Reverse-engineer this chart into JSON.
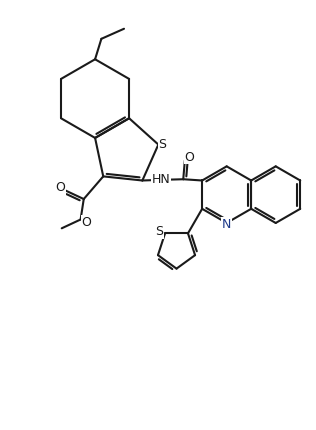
{
  "background_color": "#ffffff",
  "line_color": "#1a1a1a",
  "N_color": "#1e3a8a",
  "line_width": 1.5,
  "figsize": [
    3.16,
    4.3
  ],
  "dpi": 100,
  "xlim": [
    0,
    10
  ],
  "ylim": [
    0,
    13.6
  ]
}
